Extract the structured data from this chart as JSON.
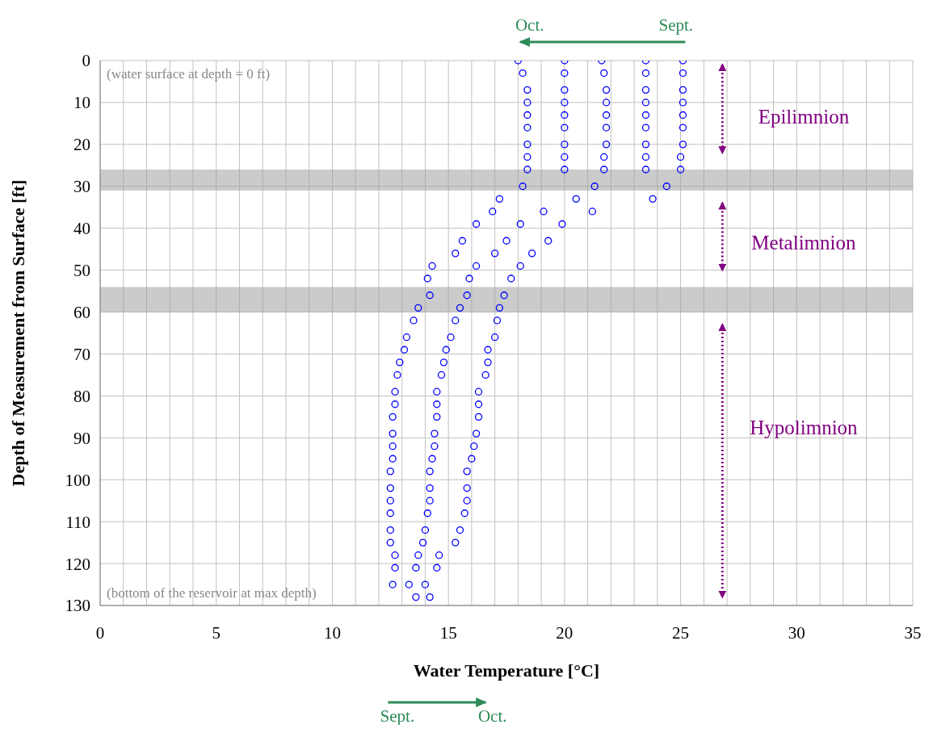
{
  "chart_data": {
    "type": "scatter",
    "xlabel": "Water Temperature [°C]",
    "ylabel": "Depth of Measurement from Surface [ft]",
    "xlim": [
      0,
      35
    ],
    "ylim": [
      130,
      0
    ],
    "xticks": [
      0,
      {
        "value": 1,
        "label": null
      },
      {
        "value": 2,
        "label": null
      },
      {
        "value": 3,
        "label": null
      },
      {
        "value": 4,
        "label": null
      },
      5,
      {
        "value": 6,
        "label": null
      },
      {
        "value": 7,
        "label": null
      },
      {
        "value": 8,
        "label": null
      },
      {
        "value": 9,
        "label": null
      },
      10,
      {
        "value": 11,
        "label": null
      },
      {
        "value": 12,
        "label": null
      },
      {
        "value": 13,
        "label": null
      },
      {
        "value": 14,
        "label": null
      },
      15,
      {
        "value": 16,
        "label": null
      },
      {
        "value": 17,
        "label": null
      },
      {
        "value": 18,
        "label": null
      },
      {
        "value": 19,
        "label": null
      },
      20,
      {
        "value": 21,
        "label": null
      },
      {
        "value": 22,
        "label": null
      },
      {
        "value": 23,
        "label": null
      },
      {
        "value": 24,
        "label": null
      },
      25,
      {
        "value": 26,
        "label": null
      },
      {
        "value": 27,
        "label": null
      },
      {
        "value": 28,
        "label": null
      },
      {
        "value": 29,
        "label": null
      },
      30,
      {
        "value": 31,
        "label": null
      },
      {
        "value": 32,
        "label": null
      },
      {
        "value": 33,
        "label": null
      },
      {
        "value": 34,
        "label": null
      },
      35
    ],
    "yticks": [
      0,
      10,
      20,
      30,
      40,
      50,
      60,
      70,
      80,
      90,
      100,
      110,
      120,
      130
    ],
    "grid": true,
    "legend": false,
    "marker": "circle",
    "series": [
      {
        "color": "#0000ff",
        "x": [
          18.0,
          20.0,
          21.6,
          23.5,
          25.1,
          18.2,
          20.0,
          21.7,
          23.5,
          25.1,
          18.4,
          20.0,
          21.8,
          23.5,
          25.1,
          18.4,
          20.0,
          21.8,
          23.5,
          25.1,
          18.4,
          20.0,
          21.8,
          23.5,
          25.1,
          18.4,
          20.0,
          21.8,
          23.5,
          25.1,
          18.4,
          20.0,
          21.8,
          23.5,
          25.1,
          18.4,
          20.0,
          21.7,
          23.5,
          25.0,
          18.4,
          20.0,
          21.7,
          23.5,
          25.0,
          18.2,
          21.3,
          24.4,
          17.2,
          20.5,
          23.8,
          16.9,
          19.1,
          21.2,
          16.2,
          18.1,
          19.9,
          15.6,
          17.5,
          19.3,
          15.3,
          17.0,
          18.6,
          14.3,
          16.2,
          18.1,
          14.1,
          15.9,
          17.7,
          14.2,
          15.8,
          17.4,
          13.7,
          15.5,
          17.2,
          13.5,
          15.3,
          17.1,
          13.2,
          15.1,
          17.0,
          13.1,
          14.9,
          16.7,
          12.9,
          14.8,
          16.7,
          12.8,
          14.7,
          16.6,
          12.7,
          14.5,
          16.3,
          12.7,
          14.5,
          16.3,
          12.6,
          14.5,
          16.3,
          12.6,
          14.4,
          16.2,
          12.6,
          14.4,
          16.1,
          12.6,
          14.3,
          16.0,
          12.5,
          14.2,
          15.8,
          12.5,
          14.2,
          15.8,
          12.5,
          14.2,
          15.8,
          12.5,
          14.1,
          15.7,
          12.5,
          14.0,
          15.5,
          12.5,
          13.9,
          15.3,
          12.7,
          13.7,
          14.6,
          12.7,
          13.6,
          14.5,
          12.6,
          13.3,
          14.0,
          13.6,
          14.2
        ],
        "values": [
          0,
          0,
          0,
          0,
          0,
          3,
          3,
          3,
          3,
          3,
          7,
          7,
          7,
          7,
          7,
          10,
          10,
          10,
          10,
          10,
          13,
          13,
          13,
          13,
          13,
          16,
          16,
          16,
          16,
          16,
          20,
          20,
          20,
          20,
          20,
          23,
          23,
          23,
          23,
          23,
          26,
          26,
          26,
          26,
          26,
          30,
          30,
          30,
          33,
          33,
          33,
          36,
          36,
          36,
          39,
          39,
          39,
          43,
          43,
          43,
          46,
          46,
          46,
          49,
          49,
          49,
          52,
          52,
          52,
          56,
          56,
          56,
          59,
          59,
          59,
          62,
          62,
          62,
          66,
          66,
          66,
          69,
          69,
          69,
          72,
          72,
          72,
          75,
          75,
          75,
          79,
          79,
          79,
          82,
          82,
          82,
          85,
          85,
          85,
          89,
          89,
          89,
          92,
          92,
          92,
          95,
          95,
          95,
          98,
          98,
          98,
          102,
          102,
          102,
          105,
          105,
          105,
          108,
          108,
          108,
          112,
          112,
          112,
          115,
          115,
          115,
          118,
          118,
          118,
          121,
          121,
          121,
          125,
          125,
          125,
          128,
          128
        ]
      }
    ],
    "bands": [
      {
        "axis": "y",
        "from": 26,
        "to": 31,
        "color": "#a0a0a0"
      },
      {
        "axis": "y",
        "from": 54,
        "to": 60,
        "color": "#a0a0a0"
      }
    ],
    "annotations": [
      "(water surface at depth = 0 ft)",
      "(bottom of the reservoir at max depth)",
      "Epilimnion",
      "Metalimnion",
      "Hypolimnion",
      "Oct.",
      "Sept.",
      "Sept.",
      "Oct."
    ]
  }
}
